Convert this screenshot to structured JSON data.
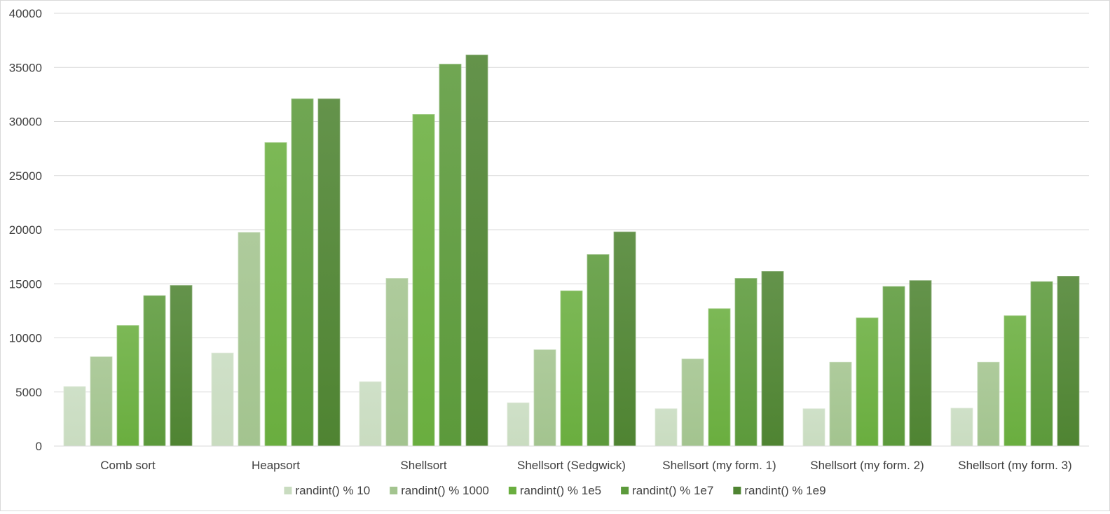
{
  "chart_data": {
    "type": "bar",
    "title": "",
    "xlabel": "",
    "ylabel": "",
    "ylim": [
      0,
      40000
    ],
    "yticks": [
      0,
      5000,
      10000,
      15000,
      20000,
      25000,
      30000,
      35000,
      40000
    ],
    "grid": true,
    "legend_position": "bottom",
    "categories": [
      "Comb sort",
      "Heapsort",
      "Shellsort",
      "Shellsort (Sedgwick)",
      "Shellsort (my form. 1)",
      "Shellsort (my form. 2)",
      "Shellsort (my form. 3)"
    ],
    "series": [
      {
        "name": "randint() % 10",
        "color": "#c9dcc0",
        "values": [
          5500,
          8600,
          5950,
          4000,
          3450,
          3450,
          3500
        ]
      },
      {
        "name": "randint() % 1000",
        "color": "#a3c48f",
        "values": [
          8250,
          19750,
          15500,
          8900,
          8050,
          7750,
          7750
        ]
      },
      {
        "name": "randint() % 1e5",
        "color": "#6aae3f",
        "values": [
          11150,
          28050,
          30650,
          14350,
          12700,
          11850,
          12050
        ]
      },
      {
        "name": "randint() % 1e7",
        "color": "#5c9a3b",
        "values": [
          13900,
          32100,
          35300,
          17700,
          15500,
          14750,
          15200
        ]
      },
      {
        "name": "randint() % 1e9",
        "color": "#4f8432",
        "values": [
          14850,
          32100,
          36150,
          19800,
          16150,
          15300,
          15700
        ]
      }
    ]
  }
}
